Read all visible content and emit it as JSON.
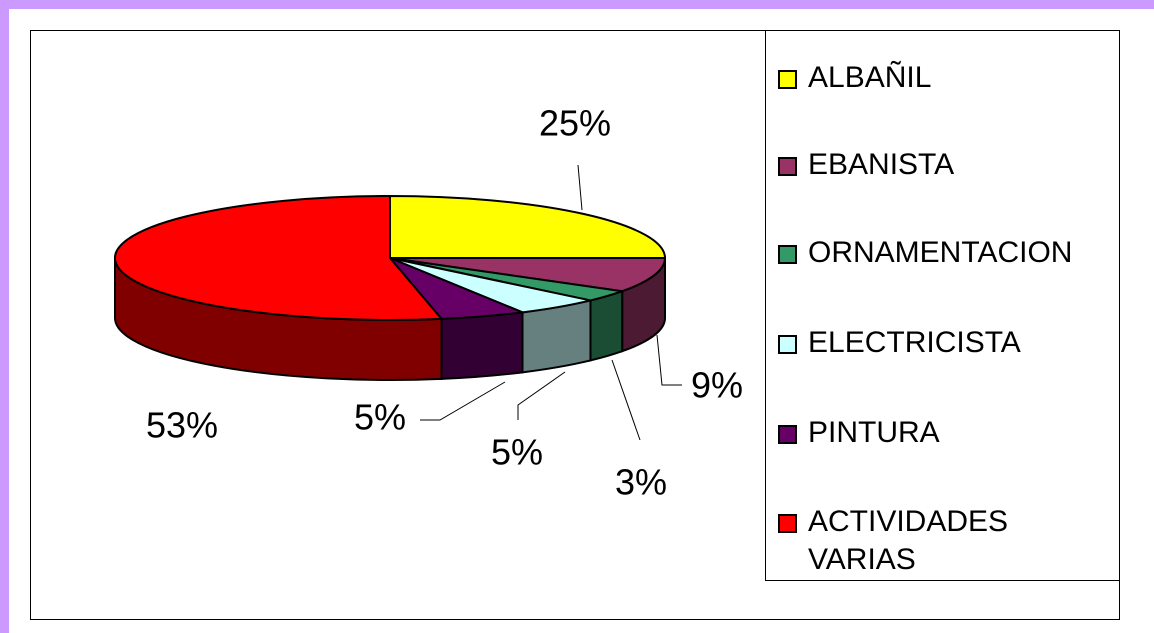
{
  "chart_data": {
    "type": "pie3d",
    "categories": [
      "ALBAÑIL",
      "EBANISTA",
      "ORNAMENTACION",
      "ELECTRICISTA",
      "PINTURA",
      "ACTIVIDADES VARIAS"
    ],
    "values": [
      25,
      9,
      3,
      5,
      5,
      53
    ],
    "value_labels": [
      "25%",
      "9%",
      "3%",
      "5%",
      "5%",
      "53%"
    ],
    "colors": [
      "#ffff00",
      "#993366",
      "#339966",
      "#ccffff",
      "#660066",
      "#ff0000"
    ],
    "legend": "right"
  }
}
